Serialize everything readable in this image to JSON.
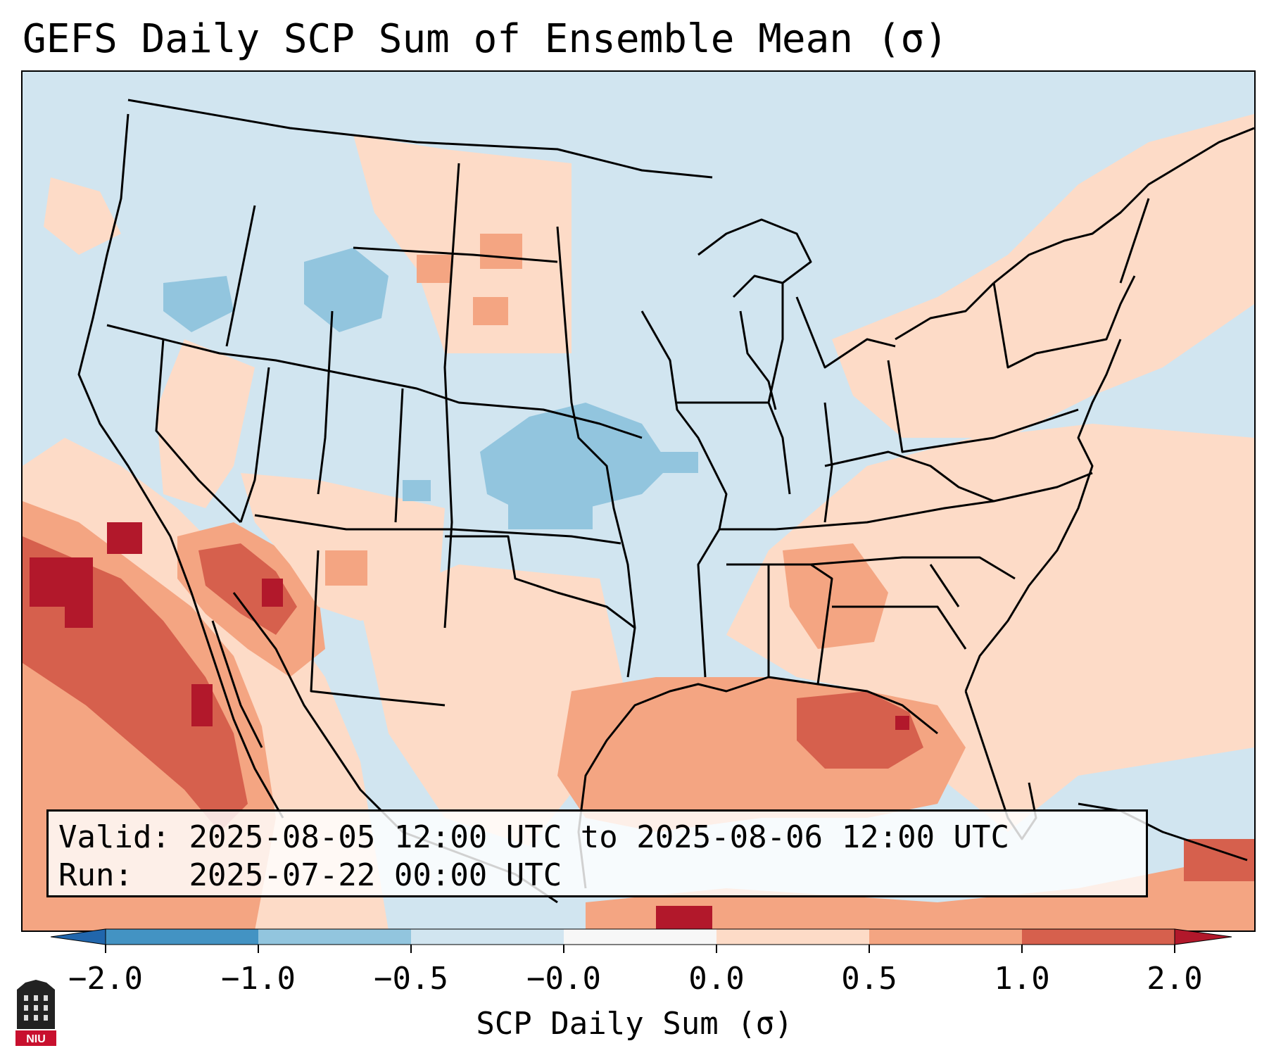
{
  "title": "GEFS Daily SCP Sum of Ensemble Mean (σ)",
  "info": {
    "valid_label": "Valid:",
    "valid_value": "2025-08-05 12:00 UTC to 2025-08-06 12:00 UTC",
    "run_label": "Run:",
    "run_value": "2025-07-22 00:00 UTC"
  },
  "colorbar": {
    "label": "SCP Daily Sum (σ)",
    "ticks": [
      "−2.0",
      "−1.0",
      "−0.5",
      "−0.0",
      "0.0",
      "0.5",
      "1.0",
      "2.0"
    ],
    "bins": [
      {
        "range": "<-2.0",
        "color": "#2166ac"
      },
      {
        "range": "-2.0 to -1.0",
        "color": "#4393c3"
      },
      {
        "range": "-1.0 to -0.5",
        "color": "#92c5de"
      },
      {
        "range": "-0.5 to -0.0",
        "color": "#d1e5f0"
      },
      {
        "range": "-0.0 to 0.0",
        "color": "#f7f7f7"
      },
      {
        "range": "0.0 to 0.5",
        "color": "#fddbc7"
      },
      {
        "range": "0.5 to 1.0",
        "color": "#f4a582"
      },
      {
        "range": "1.0 to 2.0",
        "color": "#d6604d"
      },
      {
        "range": ">2.0",
        "color": "#b2182b"
      }
    ]
  },
  "map": {
    "region": "CONUS and surrounding (Mexico, Gulf of Mexico, western Atlantic, Caribbean)",
    "anomaly_regions": [
      {
        "area": "Eastern Pacific off Baja California / northwest Mexico",
        "level": "1.0 to 2.0",
        "color": "#d6604d"
      },
      {
        "area": "Gulf of Mexico coast, Florida, Gulf",
        "level": "0.5 to 2.0",
        "color": "#f4a582"
      },
      {
        "area": "Southwest US (Arizona, New Mexico)",
        "level": "0.5 to 1.0",
        "color": "#f4a582"
      },
      {
        "area": "Texas, Southeast, Mid-Atlantic, Northeast",
        "level": "0.0 to 0.5",
        "color": "#fddbc7"
      },
      {
        "area": "Central Plains (Nebraska, Kansas, eastern Colorado)",
        "level": "-1.0 to -0.5",
        "color": "#92c5de"
      },
      {
        "area": "Northern Rockies (Montana, Idaho, Wyoming)",
        "level": "-1.0 to -0.5",
        "color": "#92c5de"
      },
      {
        "area": "Northwest, Midwest, Ohio Valley",
        "level": "-0.5 to -0.0",
        "color": "#d1e5f0"
      }
    ]
  },
  "logo": {
    "text": "NIU",
    "color": "#c8102e"
  }
}
